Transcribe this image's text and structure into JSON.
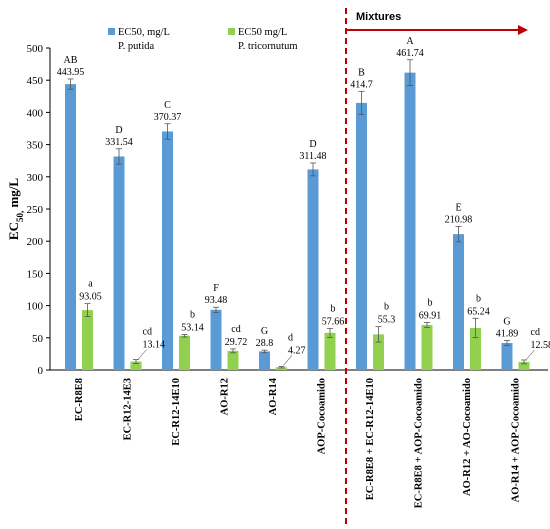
{
  "chart_data": {
    "type": "bar",
    "ylabel": {
      "main": "EC",
      "sub": "50,",
      "tail": " mg/L"
    },
    "ylim": [
      0,
      500
    ],
    "yticks": [
      0,
      50,
      100,
      150,
      200,
      250,
      300,
      350,
      400,
      450,
      500
    ],
    "categories": [
      "EC-R8E8",
      "EC-R12-14E3",
      "EC-R12-14E10",
      "AO-R12",
      "AO-R14",
      "AOP-Cocoamido",
      "EC-R8E8 + EC-R12-14E10",
      "EC-R8E8 + AOP-Cocoamido",
      "AO-R12 + AO-Cocoamido",
      "AO-R14 + AOP-Cocoamido"
    ],
    "series": [
      {
        "name_line1": "EC50, mg/L",
        "name_line2": "P. putida",
        "color": "#5B9BD5",
        "values": [
          443.95,
          331.54,
          370.37,
          93.48,
          28.8,
          311.48,
          414.7,
          461.74,
          210.98,
          41.89
        ],
        "labels": [
          "443.95",
          "331.54",
          "370.37",
          "93.48",
          "28.8",
          "311.48",
          "414.7",
          "461.74",
          "210.98",
          "41.89"
        ],
        "errors": [
          8,
          12,
          12,
          4,
          2,
          10,
          18,
          20,
          12,
          4
        ],
        "letters": [
          "AB",
          "D",
          "C",
          "F",
          "G",
          "D",
          "B",
          "A",
          "E",
          "G"
        ]
      },
      {
        "name_line1": "EC50 mg/L",
        "name_line2": "P. tricornutum",
        "color": "#92D050",
        "values": [
          93.05,
          13.14,
          53.14,
          29.72,
          4.27,
          57.66,
          55.3,
          69.91,
          65.24,
          12.58
        ],
        "labels": [
          "93.05",
          "13.14",
          "53.14",
          "29.72",
          "4.27",
          "57.66",
          "55.3",
          "69.91",
          "65.24",
          "12.58"
        ],
        "errors": [
          10,
          3,
          2,
          3,
          1,
          7,
          12,
          4,
          15,
          3
        ],
        "letters": [
          "a",
          "cd",
          "b",
          "cd",
          "d",
          "b",
          "b",
          "b",
          "b",
          "cd"
        ]
      }
    ],
    "divider_after_index": 5,
    "divider_color": "#C00000",
    "mixtures_label": "Mixtures",
    "grid": false,
    "legend_position": "top-left"
  }
}
